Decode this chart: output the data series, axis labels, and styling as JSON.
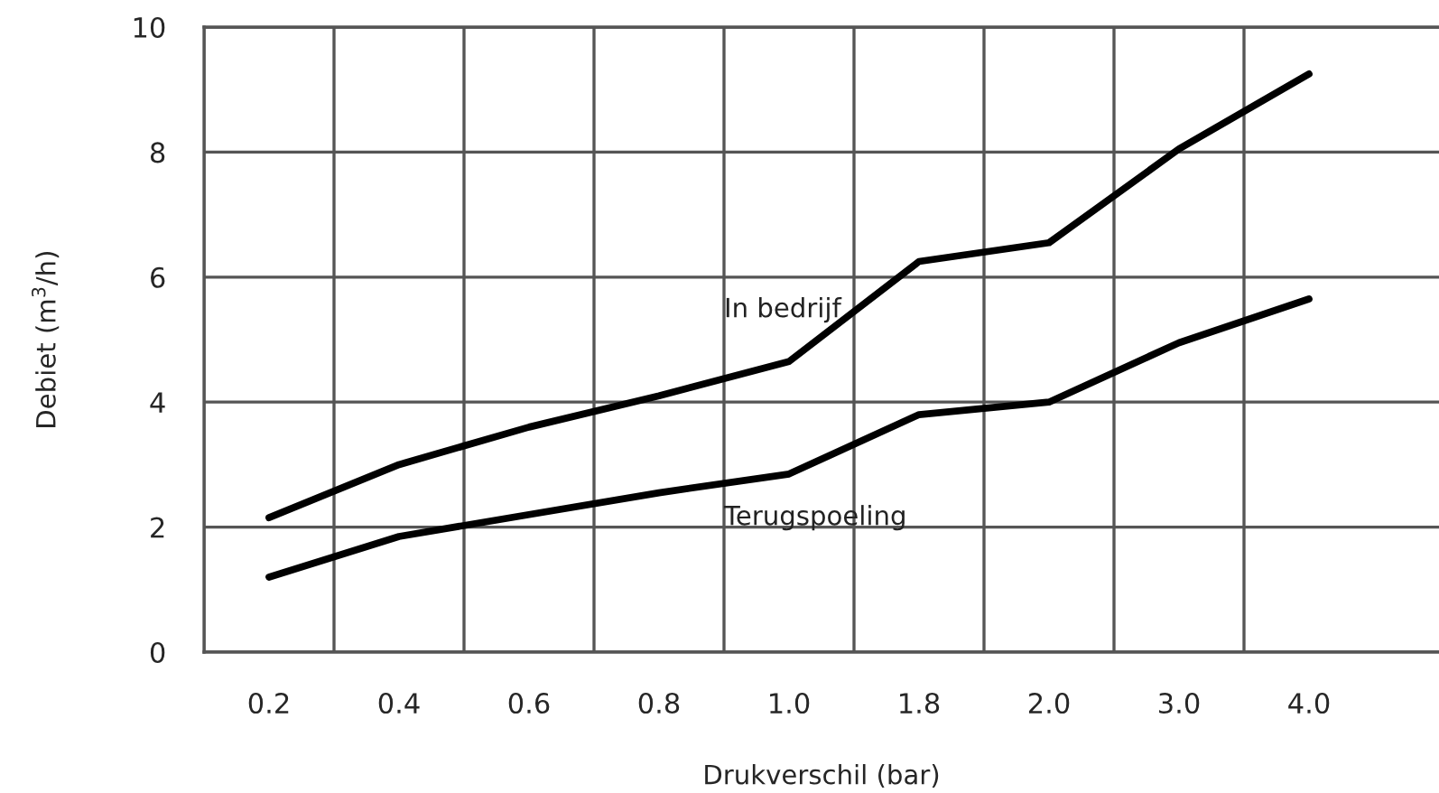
{
  "chart_data": {
    "type": "line",
    "xlabel": "Drukverschil (bar)",
    "ylabel": "Debiet (m$^{3}$/h)",
    "categories": [
      "0.2",
      "0.4",
      "0.6",
      "0.8",
      "1.0",
      "1.8",
      "2.0",
      "3.0",
      "4.0"
    ],
    "series": [
      {
        "name": "In bedrijf",
        "color": "#000000",
        "values": [
          2.15,
          3.0,
          3.6,
          4.1,
          4.65,
          6.25,
          6.55,
          8.05,
          9.25
        ]
      },
      {
        "name": "Terugspoeling",
        "color": "#000000",
        "values": [
          1.2,
          1.85,
          2.2,
          2.55,
          2.85,
          3.8,
          4.0,
          4.95,
          5.65
        ]
      }
    ],
    "ylim": [
      0,
      10
    ],
    "yticks": [
      0,
      2,
      4,
      6,
      8,
      10
    ],
    "grid": true,
    "legend": false,
    "marker": "none",
    "line_style": "solid"
  }
}
